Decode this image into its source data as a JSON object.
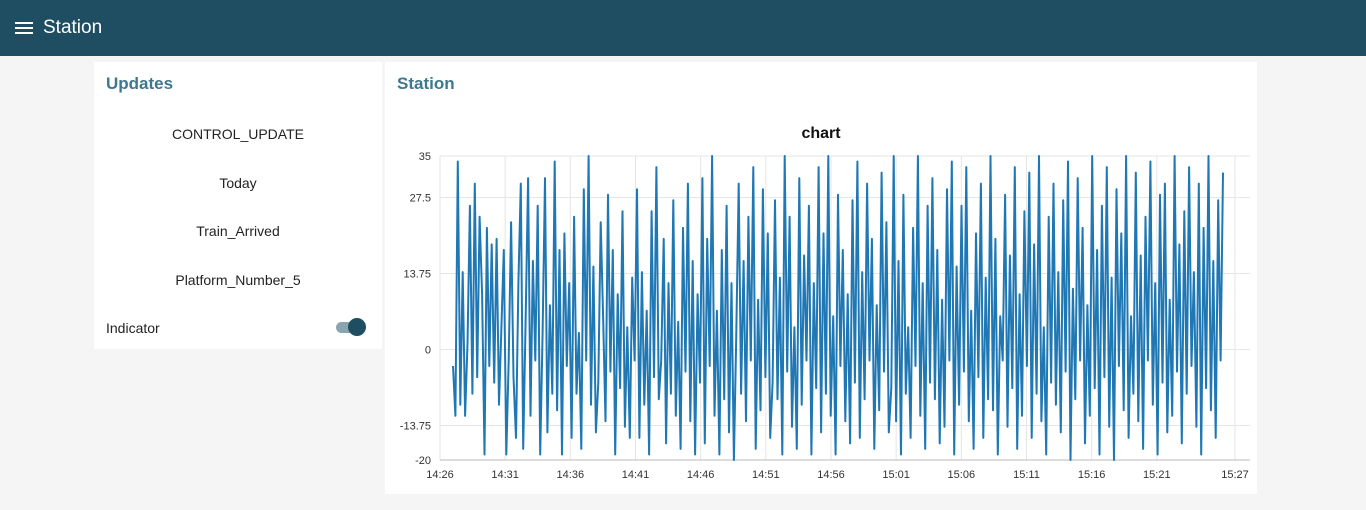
{
  "header": {
    "menu_icon": "hamburger-menu-icon",
    "title": "Station"
  },
  "updates": {
    "title": "Updates",
    "rows": [
      "CONTROL_UPDATE",
      "Today",
      "Train_Arrived",
      "Platform_Number_5"
    ],
    "indicator": {
      "label": "Indicator",
      "state": "on"
    }
  },
  "colors": {
    "header_bg": "#1f4e62",
    "accent": "#3e7790",
    "series": "#1f77b4"
  },
  "chart_panel": {
    "title": "Station"
  },
  "chart_data": {
    "type": "line",
    "title": "chart",
    "xlabel": "",
    "ylabel": "",
    "ylim": [
      -20,
      35
    ],
    "yticks": [
      "35",
      "27.5",
      "13.75",
      "0",
      "-13.75",
      "-20"
    ],
    "xticks": [
      "14:26",
      "14:31",
      "14:36",
      "14:41",
      "14:46",
      "14:51",
      "14:56",
      "15:01",
      "15:06",
      "15:11",
      "15:16",
      "15:21",
      "15:27"
    ],
    "xlim": [
      "14:26",
      "15:27"
    ],
    "grid": true,
    "legend": "none",
    "series": [
      {
        "values": [
          -3,
          -12,
          34,
          -10,
          14,
          -12,
          1,
          26,
          -8,
          30,
          -5,
          24,
          10,
          -19,
          22,
          -3,
          19,
          -6,
          20,
          -10,
          4,
          18,
          -19,
          -2,
          23,
          -5,
          -16,
          12,
          30,
          -18,
          5,
          31,
          -12,
          16,
          -2,
          26,
          -19,
          3,
          31,
          -15,
          8,
          -8,
          34,
          -11,
          18,
          -19,
          21,
          -3,
          12,
          -16,
          24,
          -8,
          3,
          -18,
          29,
          -2,
          35,
          -10,
          15,
          -15,
          -6,
          23,
          6,
          -13,
          28,
          -4,
          18,
          -19,
          10,
          -7,
          25,
          -14,
          4,
          -16,
          13,
          -2,
          29,
          -16,
          14,
          -10,
          7,
          -19,
          25,
          -5,
          33,
          -9,
          -2,
          20,
          -17,
          12,
          -8,
          27,
          -12,
          5,
          -18,
          22,
          -4,
          30,
          -13,
          16,
          -19,
          10,
          -6,
          31,
          -17,
          20,
          -3,
          35,
          -12,
          7,
          -19,
          18,
          -9,
          26,
          -15,
          12,
          -20,
          3,
          30,
          -8,
          16,
          -13,
          24,
          -2,
          33,
          -18,
          9,
          -11,
          29,
          -5,
          21,
          -16,
          -6,
          27,
          -9,
          13,
          -19,
          35,
          -4,
          24,
          -14,
          4,
          -18,
          31,
          -10,
          17,
          -2,
          26,
          -19,
          12,
          -7,
          33,
          -15,
          21,
          -8,
          35,
          -12,
          6,
          -19,
          28,
          -3,
          18,
          -13,
          10,
          -17,
          27,
          -6,
          34,
          -16,
          14,
          -9,
          30,
          -2,
          20,
          -18,
          8,
          -11,
          32,
          -4,
          23,
          -15,
          -7,
          35,
          -13,
          16,
          -19,
          28,
          -8,
          4,
          -16,
          22,
          -3,
          35,
          -12,
          12,
          -18,
          26,
          -6,
          31,
          -9,
          18,
          -17,
          9,
          -14,
          29,
          -2,
          34,
          -19,
          15,
          -10,
          26,
          -4,
          33,
          -13,
          7,
          -18,
          21,
          -5,
          30,
          -16,
          13,
          -9,
          35,
          -11,
          20,
          -19,
          6,
          -2,
          28,
          -14,
          17,
          -7,
          33,
          -18,
          10,
          -12,
          25,
          -3,
          32,
          -16,
          19,
          -8,
          35,
          -13,
          4,
          -19,
          24,
          -6,
          30,
          -10,
          14,
          -15,
          27,
          -4,
          34,
          -20,
          11,
          -9,
          31,
          -2,
          22,
          -17,
          8,
          -12,
          35,
          -7,
          18,
          -19,
          26,
          -5,
          33,
          -14,
          13,
          -20,
          29,
          -3,
          21,
          -11,
          35,
          -16,
          6,
          -8,
          32,
          -13,
          17,
          -18,
          24,
          -2,
          34,
          -10,
          12,
          -19,
          28,
          -6,
          30,
          -15,
          9,
          -12,
          35,
          -4,
          19,
          -17,
          25,
          -8,
          33,
          -3,
          14,
          -14,
          30,
          -19,
          22,
          -7,
          35,
          -11,
          16,
          -16,
          27,
          -2,
          32
        ]
      }
    ]
  }
}
